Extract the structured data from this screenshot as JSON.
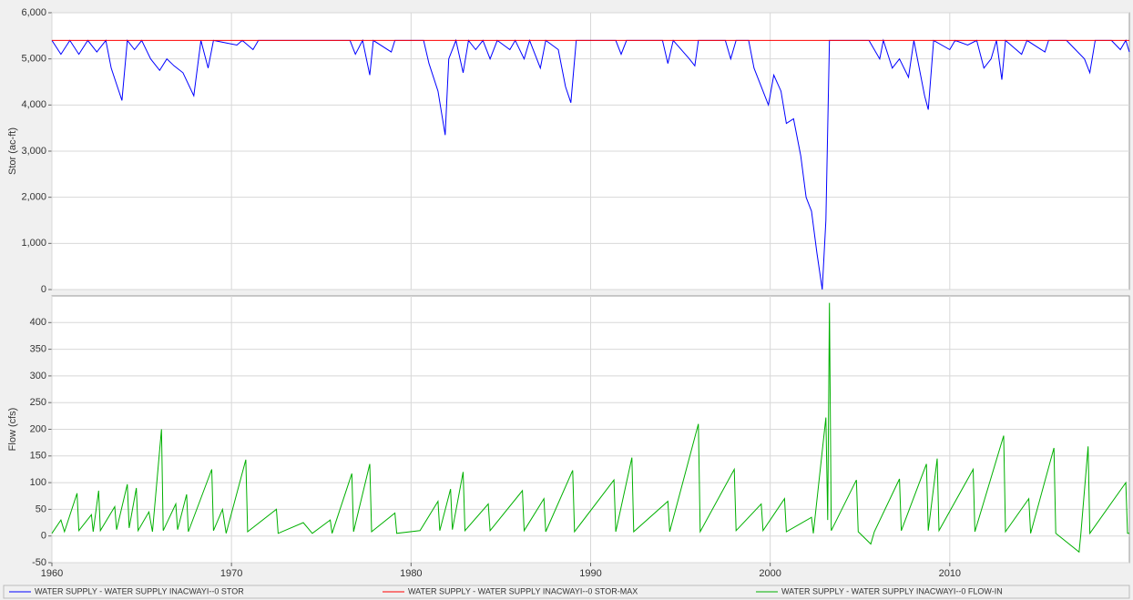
{
  "chart_data": [
    {
      "type": "line",
      "ylabel": "Stor (ac-ft)",
      "xlim": [
        1960,
        2020
      ],
      "xticks": [
        1960,
        1970,
        1980,
        1990,
        2000,
        2010
      ],
      "ylim": [
        0,
        6000
      ],
      "yticks": [
        {
          "value": 0,
          "label": "0"
        },
        {
          "value": 1000,
          "label": "1,000"
        },
        {
          "value": 2000,
          "label": "2,000"
        },
        {
          "value": 3000,
          "label": "3,000"
        },
        {
          "value": 4000,
          "label": "4,000"
        },
        {
          "value": 5000,
          "label": "5,000"
        },
        {
          "value": 6000,
          "label": "6,000"
        }
      ],
      "grid": true,
      "series": [
        {
          "name": "WATER SUPPLY - WATER SUPPLY INACWAYI--0 STOR",
          "color": "#0000ff",
          "x": [
            1960,
            1960.5,
            1961,
            1961.5,
            1962,
            1962.5,
            1963,
            1963.3,
            1963.9,
            1964.2,
            1964.6,
            1965,
            1965.5,
            1966,
            1966.4,
            1966.8,
            1967.3,
            1967.9,
            1968.3,
            1968.7,
            1969,
            1970.3,
            1970.6,
            1971.2,
            1971.5,
            1976.6,
            1976.9,
            1977.3,
            1977.7,
            1977.9,
            1978.9,
            1979.1,
            1980.7,
            1981,
            1981.5,
            1981.9,
            1982.1,
            1982.5,
            1982.9,
            1983.2,
            1983.6,
            1984,
            1984.4,
            1984.8,
            1985.5,
            1985.8,
            1986.3,
            1986.6,
            1987.2,
            1987.5,
            1988.2,
            1988.6,
            1988.9,
            1989.2,
            1991.4,
            1991.7,
            1992,
            1994,
            1994.3,
            1994.6,
            1995.5,
            1995.8,
            1996,
            1997.5,
            1997.8,
            1998.1,
            1998.8,
            1999.1,
            1999.5,
            1999.9,
            2000.2,
            2000.6,
            2000.9,
            2001.3,
            2001.7,
            2002,
            2002.3,
            2002.6,
            2002.9,
            2003.1,
            2003.3,
            2005.5,
            2006.1,
            2006.3,
            2006.8,
            2007.2,
            2007.7,
            2008,
            2008.6,
            2008.8,
            2009.1,
            2010,
            2010.3,
            2011,
            2011.5,
            2011.9,
            2012.3,
            2012.6,
            2012.9,
            2013.1,
            2014,
            2014.3,
            2015.3,
            2015.5,
            2016.5,
            2017,
            2017.5,
            2017.8,
            2018.1,
            2019,
            2019.5,
            2019.8,
            2020
          ],
          "values": [
            5400,
            5100,
            5400,
            5100,
            5400,
            5150,
            5400,
            4800,
            4100,
            5400,
            5200,
            5400,
            5000,
            4750,
            5000,
            4850,
            4700,
            4200,
            5400,
            4800,
            5400,
            5300,
            5400,
            5200,
            5400,
            5400,
            5100,
            5400,
            4650,
            5400,
            5150,
            5400,
            5400,
            4900,
            4300,
            3350,
            5000,
            5400,
            4700,
            5400,
            5200,
            5400,
            5000,
            5400,
            5200,
            5400,
            5000,
            5400,
            4800,
            5400,
            5200,
            4400,
            4050,
            5400,
            5400,
            5100,
            5400,
            5400,
            4900,
            5400,
            5000,
            4850,
            5400,
            5400,
            5000,
            5400,
            5400,
            4800,
            4400,
            4000,
            4650,
            4300,
            3600,
            3700,
            2900,
            2000,
            1700,
            800,
            0,
            1500,
            5400,
            5400,
            5000,
            5400,
            4800,
            5000,
            4600,
            5400,
            4200,
            3900,
            5400,
            5200,
            5400,
            5300,
            5400,
            4800,
            5000,
            5400,
            4550,
            5400,
            5100,
            5400,
            5150,
            5400,
            5400,
            5200,
            5000,
            4700,
            5400,
            5400,
            5200,
            5400,
            5150
          ]
        },
        {
          "name": "WATER SUPPLY - WATER SUPPLY INACWAYI--0 STOR-MAX",
          "color": "#ff0000",
          "x": [
            1960,
            2020
          ],
          "values": [
            5400,
            5400
          ]
        }
      ]
    },
    {
      "type": "line",
      "ylabel": "Flow (cfs)",
      "xlim": [
        1960,
        2020
      ],
      "xticks": [
        1960,
        1970,
        1980,
        1990,
        2000,
        2010
      ],
      "ylim": [
        -50,
        450
      ],
      "yticks": [
        -50,
        0,
        50,
        100,
        150,
        200,
        250,
        300,
        350,
        400
      ],
      "grid": true,
      "series": [
        {
          "name": "WATER SUPPLY - WATER SUPPLY INACWAYI--0 FLOW-IN",
          "color": "#00b000",
          "x": [
            1960,
            1960.5,
            1960.7,
            1961.4,
            1961.5,
            1962.2,
            1962.3,
            1962.6,
            1962.7,
            1963.5,
            1963.6,
            1964.2,
            1964.3,
            1964.7,
            1964.8,
            1965.4,
            1965.6,
            1966.1,
            1966.2,
            1966.9,
            1967,
            1967.5,
            1967.6,
            1968.9,
            1969,
            1969.5,
            1969.7,
            1970.8,
            1970.9,
            1972.5,
            1972.6,
            1974,
            1974.5,
            1975.5,
            1975.6,
            1976.7,
            1976.8,
            1977.7,
            1977.8,
            1979.1,
            1979.2,
            1980.5,
            1981.5,
            1981.6,
            1982.2,
            1982.3,
            1982.9,
            1983,
            1984.3,
            1984.4,
            1986.2,
            1986.3,
            1987.4,
            1987.5,
            1989,
            1989.1,
            1991.3,
            1991.4,
            1992.3,
            1992.4,
            1994.3,
            1994.4,
            1996,
            1996.1,
            1998,
            1998.1,
            1999.5,
            1999.6,
            2000.8,
            2000.9,
            2002.3,
            2002.4,
            2003.1,
            2003.2,
            2003.3,
            2003.4,
            2004.8,
            2004.9,
            2005.6,
            2005.8,
            2007.2,
            2007.3,
            2008.7,
            2008.8,
            2009.3,
            2009.4,
            2011.3,
            2011.4,
            2013,
            2013.1,
            2014.4,
            2014.5,
            2015.8,
            2015.9,
            2017.2,
            2017.3,
            2017.7,
            2017.8,
            2019.8,
            2019.9,
            2020
          ],
          "values": [
            5,
            30,
            8,
            80,
            10,
            40,
            8,
            85,
            10,
            55,
            12,
            97,
            15,
            90,
            10,
            45,
            8,
            200,
            10,
            60,
            12,
            78,
            8,
            125,
            10,
            50,
            5,
            143,
            8,
            50,
            5,
            25,
            5,
            30,
            5,
            117,
            8,
            135,
            8,
            43,
            5,
            10,
            65,
            10,
            88,
            12,
            120,
            10,
            60,
            10,
            85,
            10,
            70,
            8,
            123,
            8,
            105,
            8,
            147,
            8,
            65,
            8,
            210,
            8,
            125,
            10,
            60,
            10,
            70,
            8,
            35,
            5,
            222,
            30,
            437,
            10,
            105,
            8,
            -15,
            8,
            107,
            10,
            135,
            10,
            145,
            10,
            125,
            8,
            188,
            8,
            70,
            5,
            165,
            5,
            -30,
            5,
            168,
            5,
            100,
            5,
            5
          ]
        }
      ]
    }
  ]
}
